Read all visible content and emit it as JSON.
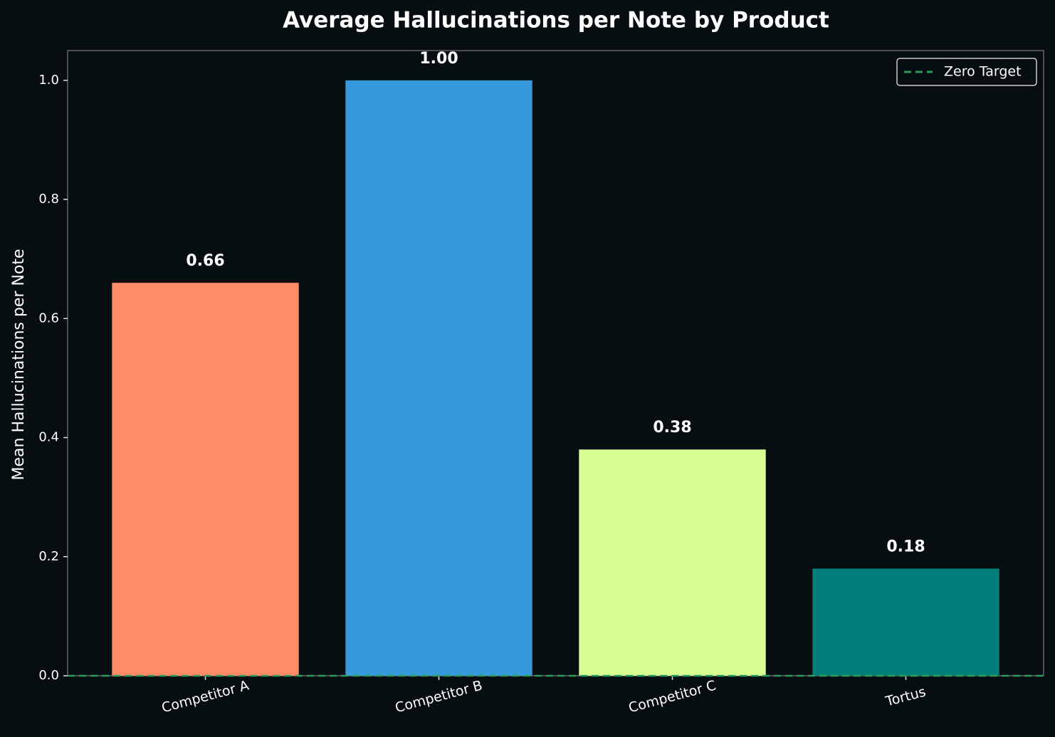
{
  "chart_data": {
    "type": "bar",
    "title": "Average Hallucinations per Note by Product",
    "y_label": "Mean Hallucinations per Note",
    "categories": [
      "Competitor A",
      "Competitor B",
      "Competitor C",
      "Tortus"
    ],
    "values": [
      0.66,
      1.0,
      0.38,
      0.18
    ],
    "value_labels": [
      "0.66",
      "1.00",
      "0.38",
      "0.18"
    ],
    "colors": [
      "#ff8c66",
      "#3798db",
      "#d8ff94",
      "#007f7a"
    ],
    "ylim": [
      0,
      1.05
    ],
    "yticks": [
      {
        "value": 0,
        "label": "0.0"
      },
      {
        "value": 0.2,
        "label": "0.2"
      },
      {
        "value": 0.4,
        "label": "0.4"
      },
      {
        "value": 0.6,
        "label": "0.6"
      },
      {
        "value": 0.8,
        "label": "0.8"
      },
      {
        "value": 1,
        "label": "1.0"
      }
    ],
    "reference_lines": [
      {
        "name": "Zero Target",
        "value": 0,
        "color": "#2e9b5e"
      }
    ],
    "legend": "upper right",
    "grid": false
  }
}
